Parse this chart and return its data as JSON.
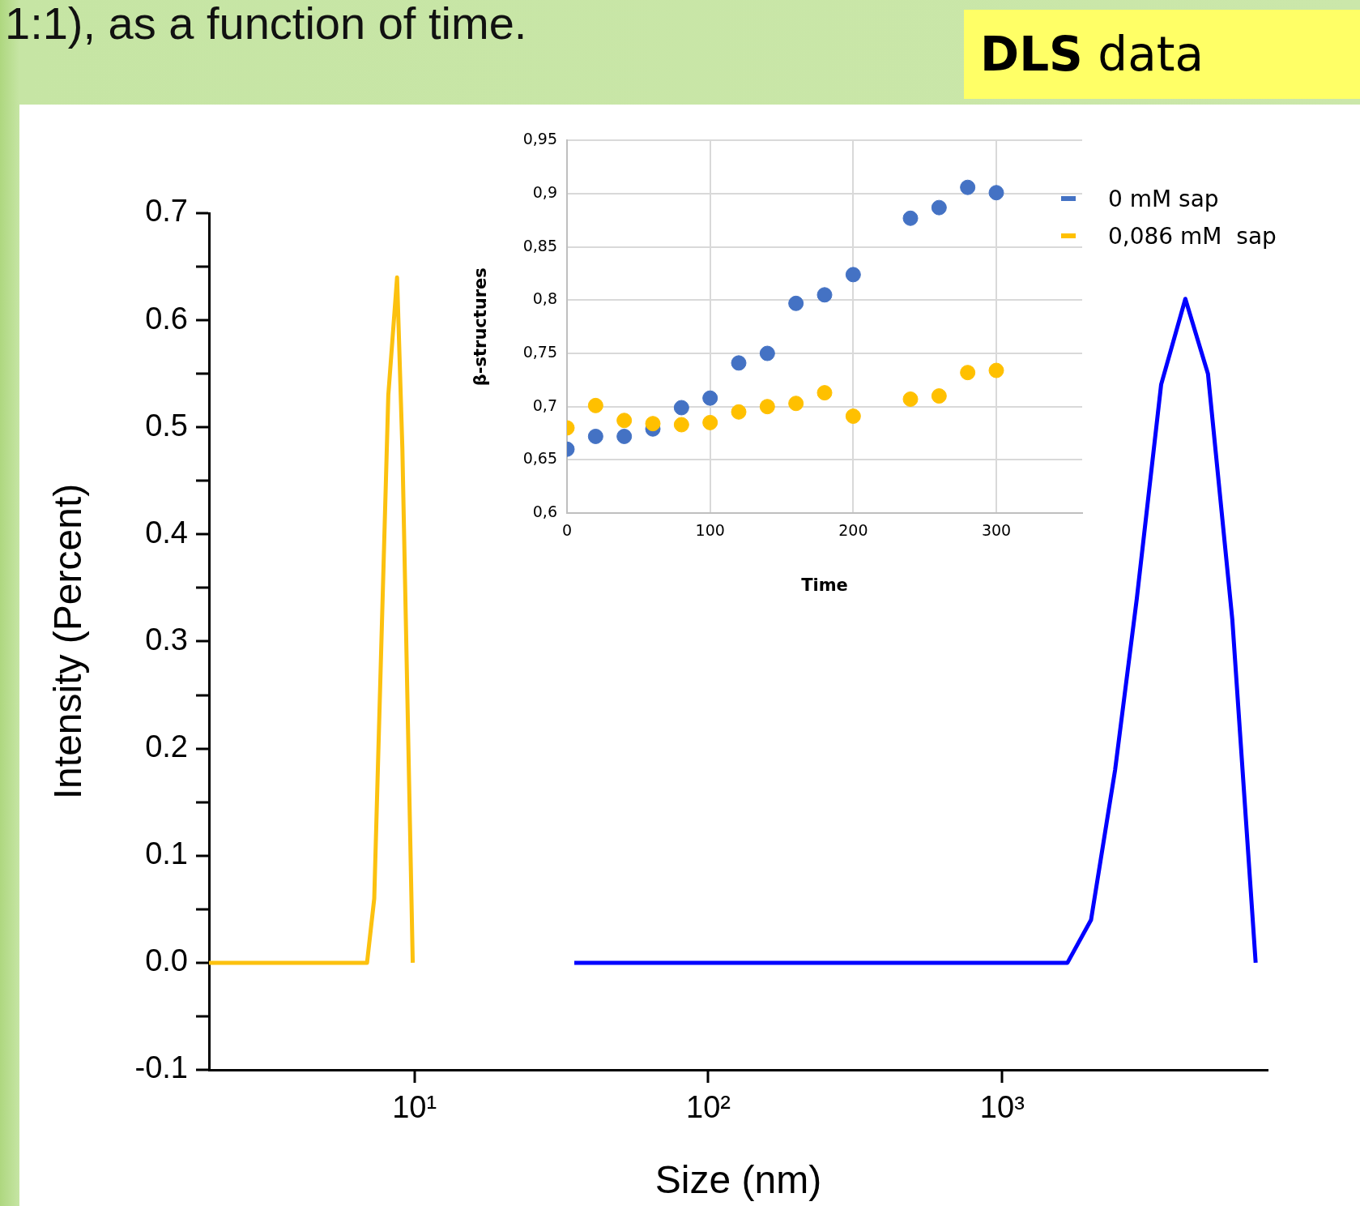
{
  "chart_data": [
    {
      "type": "line",
      "title": "1:1), as a function of time.",
      "annotations": [
        "DLS data"
      ],
      "xlabel": "Size (nm)",
      "ylabel": "Intensity (Percent)",
      "log": "x",
      "grid": false,
      "xlim": [
        2,
        8000
      ],
      "xticks": [
        {
          "value": 10,
          "label": "10¹"
        },
        {
          "value": 100,
          "label": "10²"
        },
        {
          "value": 1000,
          "label": "10³"
        }
      ],
      "ylim": [
        -0.1,
        0.7
      ],
      "yticks": [
        -0.1,
        {
          "value": -0.05,
          "label": null
        },
        {
          "value": 0,
          "label": "0.0"
        },
        {
          "value": 0.05,
          "label": null
        },
        0.1,
        {
          "value": 0.15,
          "label": null
        },
        0.2,
        {
          "value": 0.25,
          "label": null
        },
        0.3,
        {
          "value": 0.35,
          "label": null
        },
        0.4,
        {
          "value": 0.45,
          "label": null
        },
        0.5,
        {
          "value": 0.55,
          "label": null
        },
        0.6,
        {
          "value": 0.65,
          "label": null
        },
        0.7
      ],
      "marker": "none",
      "series": [
        {
          "color": "#fcc10f",
          "x": [
            2,
            6.9,
            7.3,
            8.15,
            8.73,
            9.1,
            9.87
          ],
          "values": [
            0,
            0,
            0.06,
            0.53,
            0.64,
            0.48,
            0
          ]
        },
        {
          "color": "#0000ff",
          "x": [
            35,
            1667,
            2005,
            2421,
            2870,
            3473,
            4198,
            5012,
            6067,
            7282
          ],
          "values": [
            0,
            0,
            0.04,
            0.18,
            0.34,
            0.54,
            0.62,
            0.55,
            0.32,
            0
          ]
        }
      ]
    },
    {
      "type": "scatter",
      "xlabel": "Time",
      "ylabel": "β-structures",
      "grid": true,
      "legend": "top right",
      "marker": "circle",
      "xlim": [
        0,
        360
      ],
      "xticks": [
        0,
        100,
        200,
        300
      ],
      "ylim": [
        0.6,
        0.95
      ],
      "yticks": [
        {
          "value": 0.6,
          "label": "0,6"
        },
        {
          "value": 0.65,
          "label": "0,65"
        },
        {
          "value": 0.7,
          "label": "0,7"
        },
        {
          "value": 0.75,
          "label": "0,75"
        },
        {
          "value": 0.8,
          "label": "0,8"
        },
        {
          "value": 0.85,
          "label": "0,85"
        },
        {
          "value": 0.9,
          "label": "0,9"
        },
        {
          "value": 0.95,
          "label": "0,95"
        }
      ],
      "x": [
        0,
        20,
        40,
        60,
        80,
        100,
        120,
        140,
        160,
        180,
        200,
        240,
        260,
        280,
        300
      ],
      "series": [
        {
          "name": "0 mM sap",
          "color": "#4472c4",
          "values": [
            0.66,
            0.672,
            0.672,
            0.679,
            0.699,
            0.708,
            0.741,
            0.75,
            0.797,
            0.805,
            0.824,
            0.877,
            0.887,
            0.906,
            0.901
          ]
        },
        {
          "name": "0,086 mM  sap",
          "color": "#ffc000",
          "values": [
            0.68,
            0.701,
            0.687,
            0.684,
            0.683,
            0.685,
            0.695,
            0.7,
            0.703,
            0.713,
            0.691,
            0.707,
            0.71,
            0.732,
            0.734
          ]
        }
      ]
    }
  ]
}
